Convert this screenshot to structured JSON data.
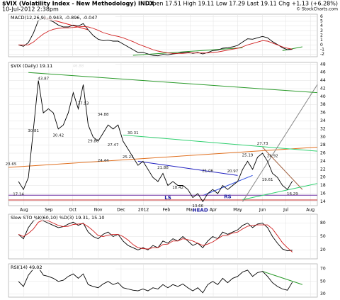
{
  "header": {
    "title": "$VIX (Volatility Index - New Methodology) INDX",
    "date": "10-Jul-2012 2:38pm",
    "quote": "Open 17.51 High 19.11 Low 17.29 Last 19.11 Chg +1.13 (+6.28%)",
    "credit": "© StockCharts.com"
  },
  "chart_data": [
    {
      "type": "line",
      "title": "MACD(12,26,9) -0.943, -0.896, -0.047",
      "xlim": [
        -2,
        60
      ],
      "ylim": [
        -2.5,
        6.5
      ],
      "yticks": [
        -2,
        -1,
        0,
        1,
        2,
        3,
        4,
        5,
        6
      ],
      "grid": true,
      "series": [
        {
          "name": "MACD",
          "color": "#000000",
          "values": [
            0,
            -0.3,
            0.5,
            2.5,
            5.2,
            5.6,
            5.3,
            4.9,
            4.2,
            3.8,
            3.8,
            4.2,
            4.0,
            4.5,
            3.2,
            2.0,
            1.2,
            0.9,
            1.0,
            0.8,
            0.8,
            0.2,
            -0.4,
            -1.0,
            -1.6,
            -1.6,
            -1.9,
            -2.2,
            -2.3,
            -2.0,
            -2.1,
            -1.9,
            -1.8,
            -1.6,
            -1.5,
            -1.8,
            -1.6,
            -1.9,
            -1.6,
            -1.2,
            -1.1,
            -0.7,
            -0.6,
            -0.4,
            -0.1,
            0.6,
            1.3,
            1.2,
            1.5,
            1.8,
            1.5,
            0.7,
            0.1,
            -0.6,
            -1.0,
            -0.943
          ]
        },
        {
          "name": "Signal",
          "color": "#d02020",
          "values": [
            0,
            0,
            0,
            0.6,
            1.5,
            2.3,
            2.9,
            3.3,
            3.5,
            3.6,
            3.6,
            3.7,
            3.8,
            3.9,
            3.8,
            3.5,
            3.1,
            2.6,
            2.3,
            2.0,
            1.8,
            1.5,
            1.1,
            0.7,
            0.2,
            -0.2,
            -0.6,
            -1.0,
            -1.3,
            -1.5,
            -1.7,
            -1.8,
            -1.8,
            -1.8,
            -1.7,
            -1.7,
            -1.7,
            -1.7,
            -1.7,
            -1.6,
            -1.5,
            -1.3,
            -1.1,
            -0.9,
            -0.7,
            -0.4,
            0.0,
            0.3,
            0.6,
            0.9,
            0.8,
            0.4,
            0.0,
            -0.4,
            -0.7,
            -0.896
          ]
        }
      ],
      "trendlines": [
        {
          "color": "#e02020",
          "points": [
            [
              5,
              5.8
            ],
            [
              14,
              3.2
            ]
          ]
        },
        {
          "color": "#2a9a2a",
          "points": [
            [
              23,
              -2.2
            ],
            [
              45,
              -0.6
            ]
          ]
        },
        {
          "color": "#2a9a2a",
          "points": [
            [
              53,
              -1.2
            ],
            [
              57,
              -0.4
            ]
          ]
        }
      ]
    },
    {
      "type": "line",
      "title": "$VIX (Daily) 19.11",
      "xlim": [
        -2,
        60
      ],
      "ylim": [
        13,
        48.5
      ],
      "grid": true,
      "yticks": [
        14,
        16,
        18,
        20,
        22,
        24,
        26,
        28,
        30,
        32,
        34,
        36,
        38,
        40,
        42,
        44,
        46,
        48
      ],
      "xticks": [
        {
          "value": 1.1,
          "label": "Aug"
        },
        {
          "value": 6.1,
          "label": "Sep"
        },
        {
          "value": 10.9,
          "label": "Oct"
        },
        {
          "value": 16.0,
          "label": "Nov"
        },
        {
          "value": 20.6,
          "label": "Dec"
        },
        {
          "value": 25.1,
          "label": "2012"
        },
        {
          "value": 29.7,
          "label": "Feb"
        },
        {
          "value": 34.5,
          "label": "Mar"
        },
        {
          "value": 39.1,
          "label": "Apr"
        },
        {
          "value": 44.0,
          "label": "May"
        },
        {
          "value": 49.0,
          "label": "Jun"
        },
        {
          "value": 53.7,
          "label": "Jul"
        },
        {
          "value": 58.6,
          "label": "Aug"
        }
      ],
      "series": [
        {
          "name": "$VIX",
          "color": "#000000",
          "values": [
            19,
            17,
            20,
            32,
            44,
            36,
            37,
            36,
            32,
            33,
            36,
            41,
            37,
            43,
            33,
            30,
            29,
            31,
            33,
            32,
            33,
            29,
            27,
            25,
            23,
            24,
            22,
            20,
            19,
            21,
            18,
            19,
            18,
            18,
            17,
            15,
            16,
            14,
            16,
            17,
            16,
            18,
            17,
            18,
            19,
            22,
            24,
            22,
            25,
            26,
            24,
            21,
            20,
            18,
            17,
            19.11
          ]
        }
      ],
      "annotations": [
        {
          "text": "17.14",
          "x": 0,
          "y": 15.8
        },
        {
          "text": "43.87",
          "x": 5,
          "y": 44.5
        },
        {
          "text": "46.88",
          "x": 12,
          "y": 47.6
        },
        {
          "text": "30.81",
          "x": 3,
          "y": 31.5
        },
        {
          "text": "30.42",
          "x": 8,
          "y": 30.4
        },
        {
          "text": "37.53",
          "x": 13,
          "y": 38.3
        },
        {
          "text": "34.88",
          "x": 17,
          "y": 35.6
        },
        {
          "text": "29.86",
          "x": 15,
          "y": 29
        },
        {
          "text": "27.47",
          "x": 19,
          "y": 28
        },
        {
          "text": "24.44",
          "x": 17,
          "y": 24.2
        },
        {
          "text": "30.31",
          "x": 23,
          "y": 31
        },
        {
          "text": "25.23",
          "x": 22,
          "y": 25
        },
        {
          "text": "21.88",
          "x": 29,
          "y": 22.4
        },
        {
          "text": "21.06",
          "x": 38,
          "y": 21.6
        },
        {
          "text": "18.42",
          "x": 32,
          "y": 17.5
        },
        {
          "text": "13.66",
          "x": 36,
          "y": 12.9
        },
        {
          "text": "20.97",
          "x": 43,
          "y": 21.5
        },
        {
          "text": "25.19",
          "x": 46,
          "y": 25.5
        },
        {
          "text": "27.73",
          "x": 49,
          "y": 28.4
        },
        {
          "text": "24.92",
          "x": 51,
          "y": 25.3
        },
        {
          "text": "19.61",
          "x": 50,
          "y": 19.4
        },
        {
          "text": "16.29",
          "x": 55,
          "y": 15.9
        },
        {
          "text": "23.65",
          "x": -1.5,
          "y": 23.3
        },
        {
          "text": "LS",
          "x": 30,
          "y": 14.9
        },
        {
          "text": "RS",
          "x": 42,
          "y": 15.2
        },
        {
          "text": "HEAD",
          "x": 36.5,
          "y": 11.9
        }
      ],
      "trendlines": [
        {
          "color": "#e07020",
          "points": [
            [
              -2,
              22.5
            ],
            [
              60,
              27.5
            ]
          ]
        },
        {
          "color": "#30d070",
          "points": [
            [
              21,
              30.5
            ],
            [
              60,
              26.5
            ]
          ]
        },
        {
          "color": "#2020c0",
          "points": [
            [
              24,
              24
            ],
            [
              44,
              20.5
            ]
          ]
        },
        {
          "color": "#3050e0",
          "points": [
            [
              37,
              15.5
            ],
            [
              47,
              20.5
            ]
          ]
        },
        {
          "color": "#c02020",
          "points": [
            [
              -2,
              14.4
            ],
            [
              60,
              14.4
            ]
          ]
        },
        {
          "color": "#6a2aa0",
          "points": [
            [
              -2,
              15.6
            ],
            [
              60,
              15.6
            ]
          ]
        },
        {
          "color": "#888888",
          "points": [
            [
              45,
              14
            ],
            [
              60,
              43
            ]
          ]
        },
        {
          "color": "#a06040",
          "points": [
            [
              49,
              27.5
            ],
            [
              57,
              17
            ]
          ]
        },
        {
          "color": "#30d070",
          "points": [
            [
              45,
              14.5
            ],
            [
              60,
              18.5
            ]
          ]
        },
        {
          "color": "#2a9a2a",
          "points": [
            [
              2,
              46
            ],
            [
              60,
              41
            ]
          ]
        }
      ]
    },
    {
      "type": "line",
      "title": "Slow STO %K(60,10) %D(3) 19.31, 15.10",
      "xlim": [
        -2,
        60
      ],
      "ylim": [
        0,
        100
      ],
      "yticks": [
        20,
        50,
        80
      ],
      "grid": true,
      "series": [
        {
          "name": "%K",
          "color": "#000000",
          "values": [
            55,
            45,
            70,
            85,
            90,
            85,
            80,
            75,
            70,
            72,
            78,
            82,
            75,
            80,
            60,
            50,
            45,
            55,
            60,
            50,
            55,
            40,
            30,
            25,
            20,
            25,
            20,
            30,
            25,
            40,
            35,
            45,
            40,
            50,
            40,
            30,
            35,
            25,
            40,
            50,
            45,
            60,
            55,
            60,
            65,
            75,
            80,
            70,
            78,
            80,
            70,
            50,
            35,
            22,
            18,
            19.31
          ]
        },
        {
          "name": "%D",
          "color": "#d02020",
          "values": [
            55,
            50,
            57,
            67,
            82,
            87,
            85,
            80,
            75,
            72,
            73,
            77,
            78,
            79,
            72,
            63,
            52,
            50,
            53,
            55,
            55,
            50,
            42,
            32,
            25,
            23,
            22,
            25,
            25,
            32,
            33,
            40,
            40,
            45,
            43,
            40,
            35,
            30,
            33,
            38,
            45,
            52,
            53,
            58,
            60,
            67,
            73,
            75,
            76,
            76,
            76,
            67,
            52,
            36,
            25,
            15.1
          ]
        }
      ]
    },
    {
      "type": "line",
      "title": "RSI(14) 49.02",
      "xlim": [
        -2,
        60
      ],
      "ylim": [
        25,
        78
      ],
      "yticks": [
        30,
        50,
        70
      ],
      "grid": true,
      "series": [
        {
          "name": "RSI",
          "color": "#000000",
          "values": [
            50,
            42,
            60,
            70,
            72,
            60,
            58,
            55,
            50,
            52,
            58,
            62,
            55,
            62,
            45,
            42,
            40,
            46,
            50,
            45,
            48,
            40,
            38,
            36,
            35,
            38,
            35,
            40,
            38,
            45,
            40,
            45,
            42,
            46,
            40,
            35,
            40,
            32,
            45,
            50,
            45,
            55,
            48,
            55,
            58,
            65,
            68,
            58,
            64,
            66,
            58,
            48,
            42,
            38,
            36,
            49.02
          ]
        }
      ],
      "trendlines": [
        {
          "color": "#2a9a2a",
          "points": [
            [
              49,
              66
            ],
            [
              57,
              45
            ]
          ]
        }
      ]
    }
  ]
}
